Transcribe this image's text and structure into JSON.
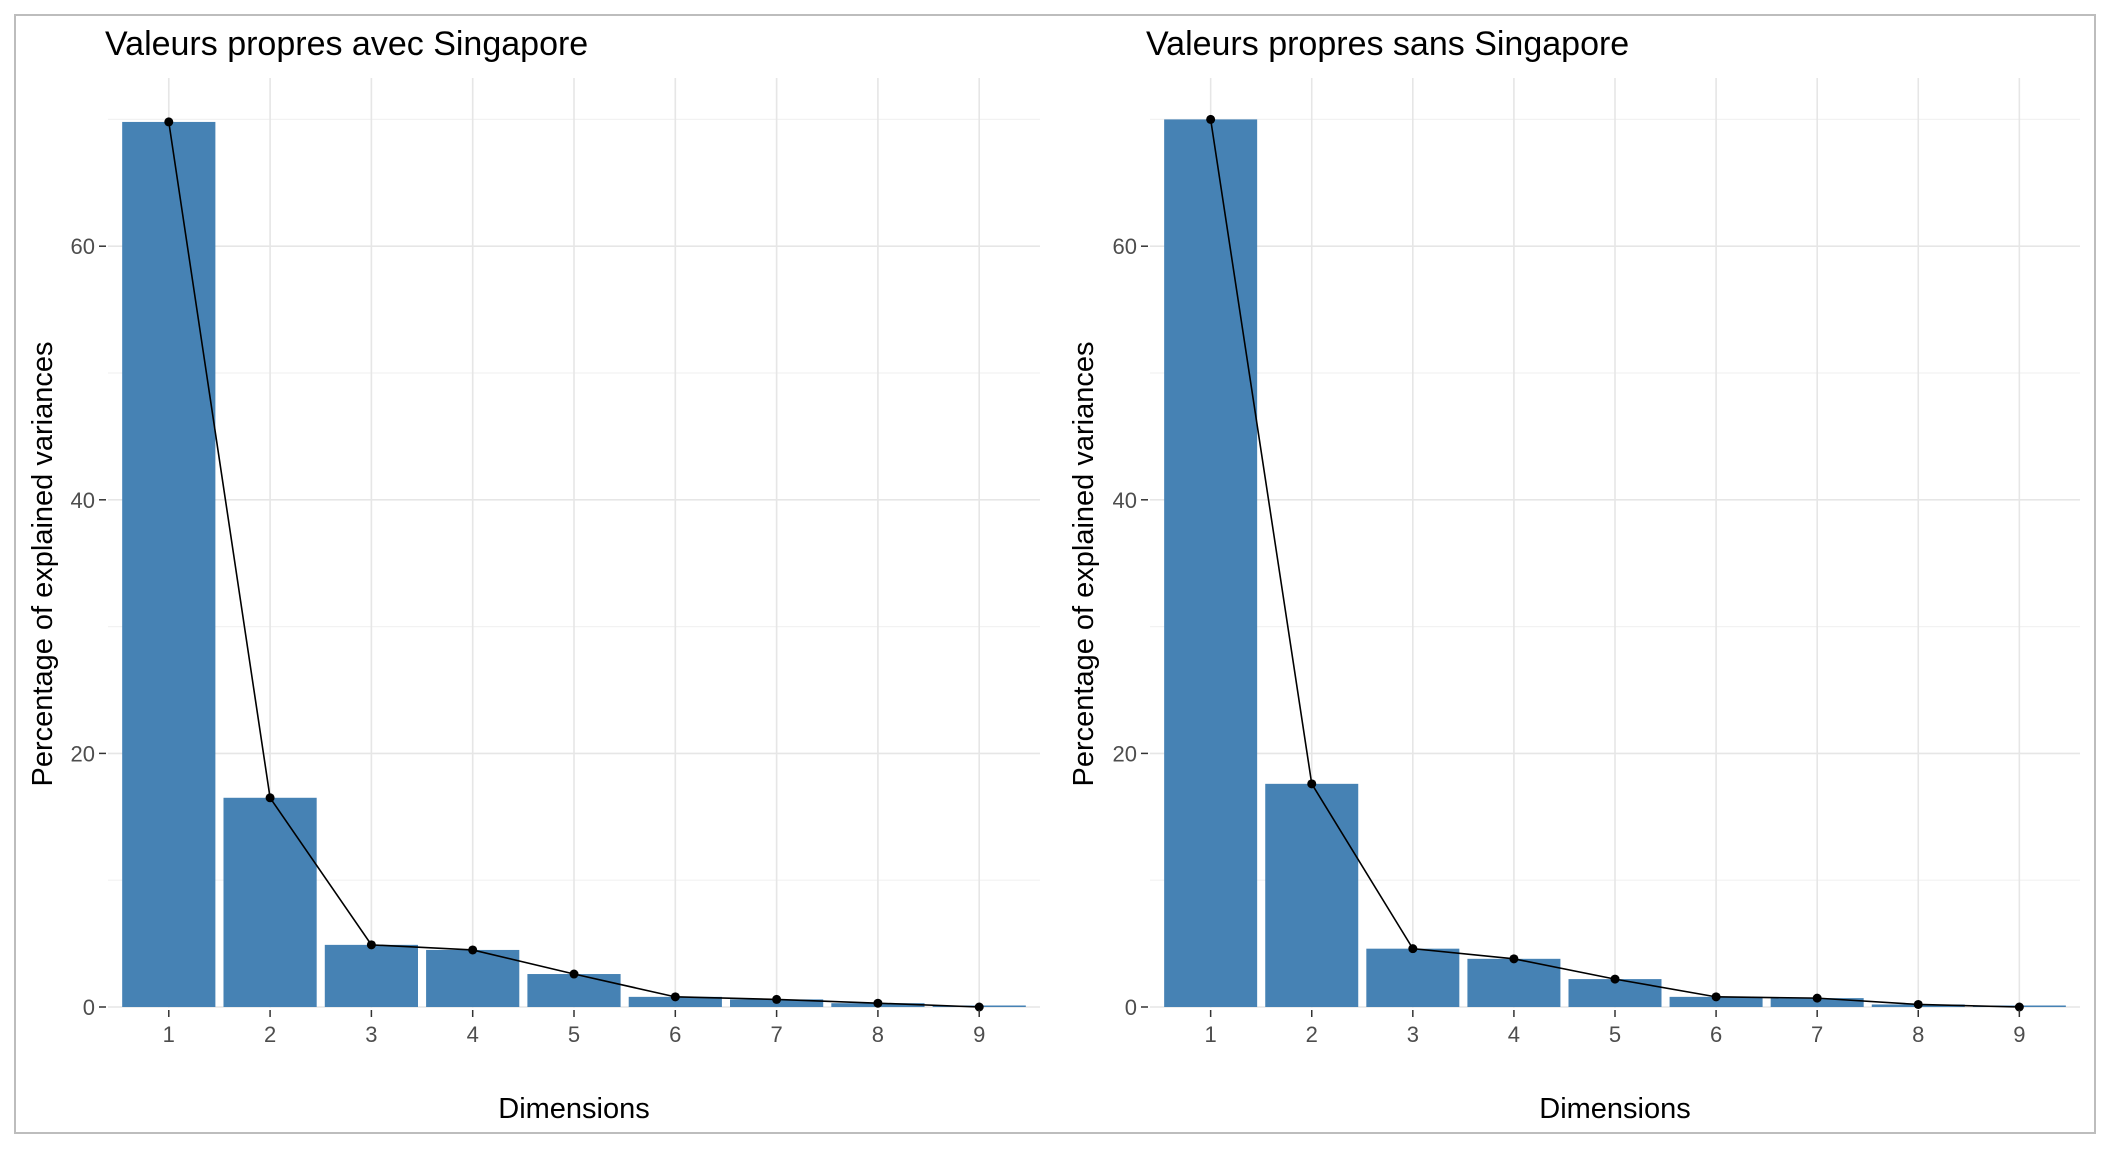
{
  "chart_data": [
    {
      "type": "bar",
      "title": "Valeurs propres avec Singapore",
      "xlabel": "Dimensions",
      "ylabel": "Percentage of explained variances",
      "categories": [
        "1",
        "2",
        "3",
        "4",
        "5",
        "6",
        "7",
        "8",
        "9"
      ],
      "values": [
        69.8,
        16.5,
        4.9,
        4.5,
        2.6,
        0.8,
        0.6,
        0.3,
        0.0
      ],
      "line_overlay": true,
      "ylim": [
        0,
        72
      ],
      "yticks": [
        "0",
        "20",
        "40",
        "60"
      ],
      "bar_color": "#4682b4",
      "line_color": "#000000",
      "grid": true
    },
    {
      "type": "bar",
      "title": "Valeurs propres sans Singapore",
      "xlabel": "Dimensions",
      "ylabel": "Percentage of explained variances",
      "categories": [
        "1",
        "2",
        "3",
        "4",
        "5",
        "6",
        "7",
        "8",
        "9"
      ],
      "values": [
        70.0,
        17.6,
        4.6,
        3.8,
        2.2,
        0.8,
        0.7,
        0.2,
        0.0
      ],
      "line_overlay": true,
      "ylim": [
        0,
        72
      ],
      "yticks": [
        "0",
        "20",
        "40",
        "60"
      ],
      "bar_color": "#4682b4",
      "line_color": "#000000",
      "grid": true
    }
  ]
}
